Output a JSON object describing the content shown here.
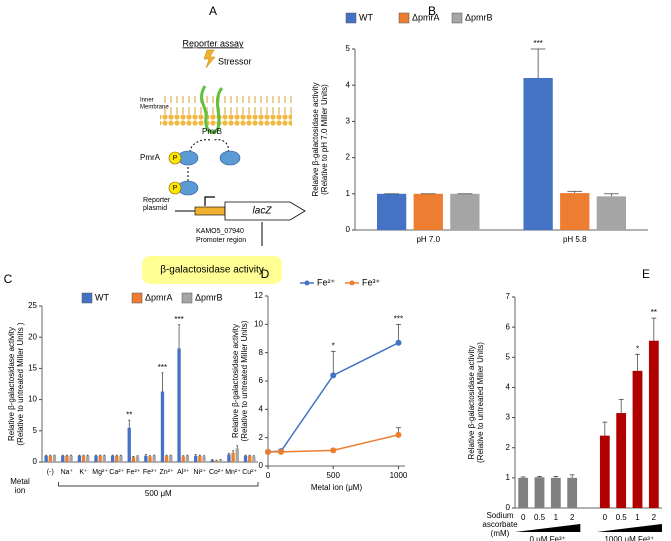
{
  "diagram": {
    "panel": "A",
    "title": "Reporter assay",
    "stressor": "Stressor",
    "membrane": [
      "Inner",
      "Membrane"
    ],
    "sensor": "PmrB",
    "regulator": "PmrA",
    "phospho": [
      "P",
      "P"
    ],
    "plasmid": [
      "Reporter",
      "plasmid"
    ],
    "gene": "lacZ",
    "promoter": [
      "KAMO5_07940",
      "Promoter region"
    ],
    "readout": "β-galactosidase activity"
  },
  "chart_data": [
    {
      "type": "bar",
      "panel": "B",
      "y_label": [
        "Relative β-galactosidase activity",
        "(Relative to pH 7.0 Miller Units)"
      ],
      "categories": [
        "pH 7.0",
        "pH 5.8"
      ],
      "ylim": [
        0,
        5
      ],
      "yticks": [
        0,
        1,
        2,
        3,
        4,
        5
      ],
      "legend": "top",
      "series": [
        {
          "name": "WT",
          "color": "#4472c4",
          "values": [
            1,
            4.2
          ],
          "errors": [
            0,
            0.8
          ],
          "annotations": [
            null,
            "***"
          ]
        },
        {
          "name": "ΔpmrA",
          "color": "#ed7d31",
          "values": [
            1,
            1.02
          ],
          "errors": [
            0,
            0.05
          ]
        },
        {
          "name": "ΔpmrB",
          "color": "#a5a5a5",
          "values": [
            1,
            0.93
          ],
          "errors": [
            0,
            0.07
          ]
        }
      ]
    },
    {
      "type": "bar",
      "panel": "C",
      "y_label": [
        "Relative β-galactosidase activity",
        "(Relative to untreated Miller Units )"
      ],
      "x_label": [
        "Metal",
        "ion"
      ],
      "group_label": "500 μM",
      "categories": [
        "(-)",
        "Na⁺",
        "K⁺",
        "Mg²⁺",
        "Ca²⁺",
        "Fe²⁺",
        "Fe³⁺",
        "Zn²⁺",
        "Al³⁺",
        "Ni²⁺",
        "Co²⁺",
        "Mn²⁺",
        "Cu²⁺"
      ],
      "category_colors": [
        "#000000",
        "#000000",
        "#000000",
        "#000000",
        "#000000",
        "#e00000",
        "#000000",
        "#e00000",
        "#e00000",
        "#000000",
        "#000000",
        "#000000",
        "#000000"
      ],
      "ylim": [
        0,
        25
      ],
      "yticks": [
        0,
        5,
        10,
        15,
        20,
        25
      ],
      "legend": "top",
      "series": [
        {
          "name": "WT",
          "color": "#4472c4",
          "values": [
            1,
            1,
            1,
            1,
            1,
            5.5,
            1,
            11.3,
            18.2,
            1,
            0.3,
            1.2,
            1
          ],
          "errors": [
            0.1,
            0.1,
            0.1,
            0.1,
            0.1,
            1.2,
            0.2,
            3,
            3.8,
            0.2,
            0.1,
            0.2,
            0.1
          ],
          "annotations": [
            null,
            null,
            null,
            null,
            null,
            "**",
            null,
            "***",
            "***",
            null,
            null,
            null,
            null
          ]
        },
        {
          "name": "ΔpmrA",
          "color": "#ed7d31",
          "values": [
            1,
            1,
            1,
            1,
            1,
            0.8,
            0.9,
            1,
            0.9,
            1,
            0.2,
            1.5,
            1
          ],
          "errors": [
            0.1,
            0.1,
            0.1,
            0.1,
            0.1,
            0.1,
            0.1,
            0.1,
            0.1,
            0.1,
            0.1,
            0.3,
            0.1
          ]
        },
        {
          "name": "ΔpmrB",
          "color": "#a5a5a5",
          "values": [
            1,
            1,
            1,
            1,
            1,
            0.9,
            1,
            1,
            1,
            0.9,
            0.3,
            2.2,
            0.9
          ],
          "errors": [
            0.1,
            0.1,
            0.1,
            0.1,
            0.1,
            0.1,
            0.1,
            0.1,
            0.1,
            0.1,
            0.1,
            0.4,
            0.1
          ]
        }
      ]
    },
    {
      "type": "line",
      "panel": "D",
      "y_label": [
        "Relative β-galactosidase activity",
        "(Relative to untreated Miller Units)"
      ],
      "x_label": "Metal ion (μM)",
      "x": [
        0,
        100,
        500,
        1000
      ],
      "xlim": [
        0,
        1050
      ],
      "xticks": [
        0,
        500,
        1000
      ],
      "ylim": [
        0,
        12
      ],
      "yticks": [
        0,
        2,
        4,
        6,
        8,
        10,
        12
      ],
      "legend": "top",
      "series": [
        {
          "name": "Fe²⁺",
          "color": "#4472c4",
          "values": [
            1,
            1.05,
            6.4,
            8.7
          ],
          "errors": [
            0.1,
            0.1,
            1.7,
            1.3
          ],
          "annotations": [
            null,
            null,
            "*",
            "***"
          ]
        },
        {
          "name": "Fe³⁺",
          "color": "#ed7d31",
          "values": [
            1,
            1,
            1.1,
            2.2
          ],
          "errors": [
            0.1,
            0.1,
            0.1,
            0.5
          ]
        }
      ]
    },
    {
      "type": "bar",
      "panel": "E",
      "y_label": [
        "Relative β-galactosidase activity",
        "(Relative to untreated Miller Units)"
      ],
      "x_label": [
        "Sodium",
        "ascorbate",
        "(mM)"
      ],
      "group_labels": [
        "0 μM Fe³⁺",
        "1000 μM Fe³⁺"
      ],
      "categories": [
        "0",
        "0.5",
        "1",
        "2",
        "0",
        "0.5",
        "1",
        "2"
      ],
      "ylim": [
        0,
        7
      ],
      "yticks": [
        0,
        1,
        2,
        3,
        4,
        5,
        6,
        7
      ],
      "series": [
        {
          "values": [
            1,
            1.02,
            1,
            1,
            2.4,
            3.15,
            4.55,
            5.55
          ],
          "errors": [
            0.03,
            0.03,
            0.05,
            0.1,
            0.45,
            0.45,
            0.55,
            0.75
          ],
          "colors": [
            "#808080",
            "#808080",
            "#808080",
            "#808080",
            "#b00000",
            "#b00000",
            "#b00000",
            "#b00000"
          ],
          "annotations": [
            null,
            null,
            null,
            null,
            null,
            null,
            "*",
            "**"
          ]
        }
      ]
    }
  ]
}
